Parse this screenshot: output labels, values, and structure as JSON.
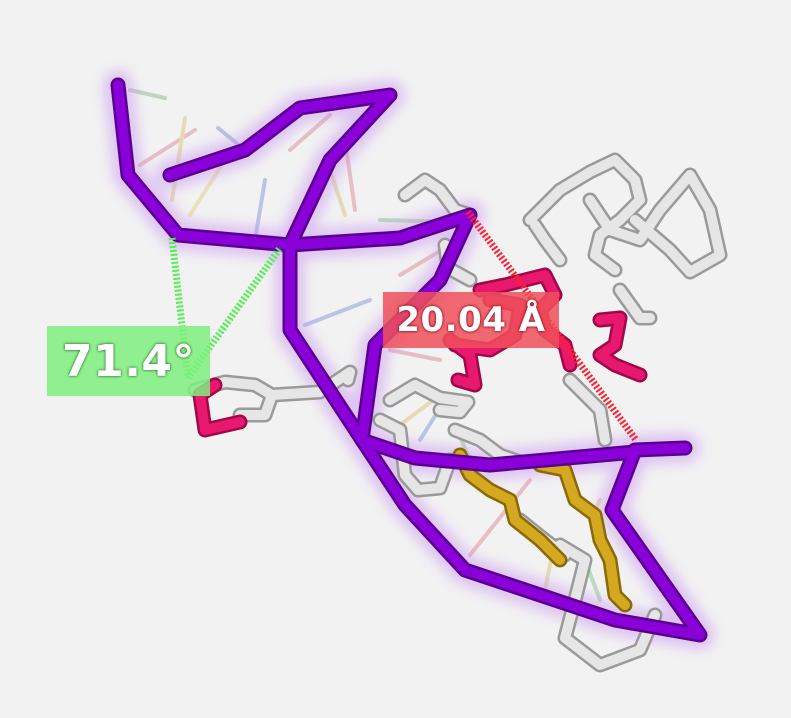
{
  "measurements": {
    "angle": {
      "value": "71.4°",
      "color": "#7ff07f"
    },
    "distance": {
      "value": "20.04 Å",
      "color": "#f0505a"
    }
  },
  "colors": {
    "backbone": "#8a00d8",
    "backbone_glow": "#c48af0",
    "protein_trace": "#e6e6e6",
    "highlight_residue": "#e8186e",
    "gold_residue": "#c8a018",
    "angle_line": "#55ee55",
    "distance_line": "#ff2030"
  }
}
